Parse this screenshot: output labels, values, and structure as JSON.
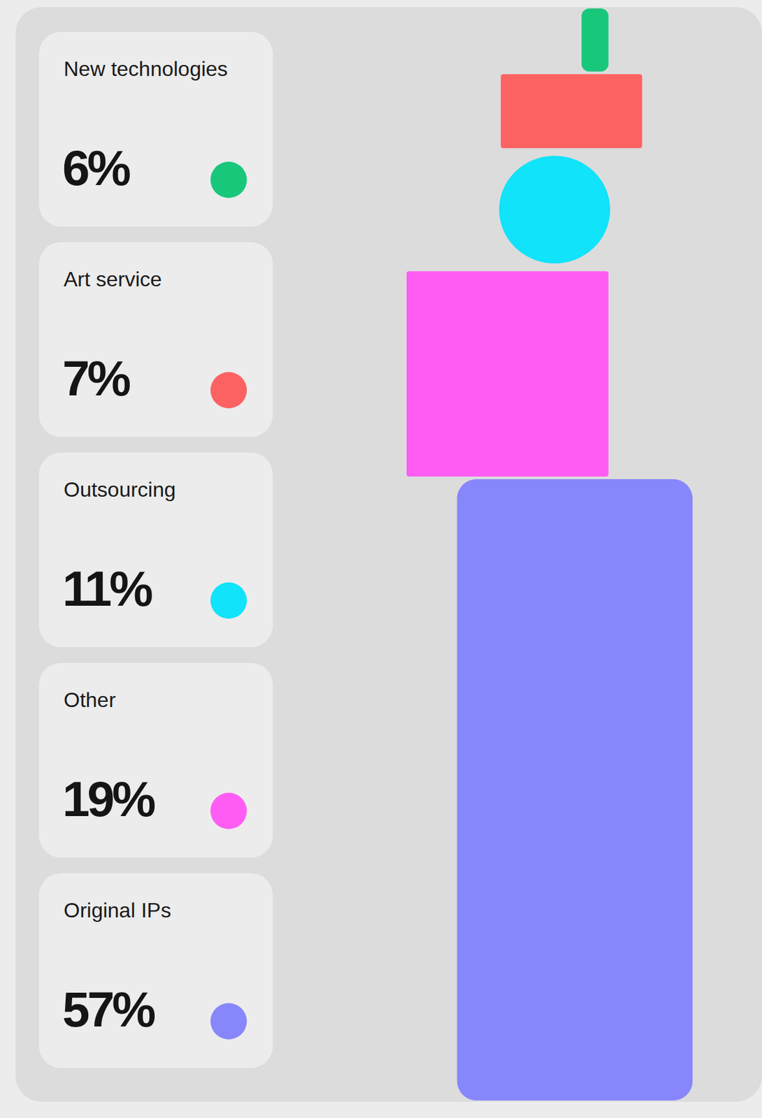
{
  "chart_data": {
    "type": "bar",
    "stacked": true,
    "tick_labels": false,
    "legend": "left",
    "categories": [
      null
    ],
    "series": [
      {
        "name": "New technologies",
        "color": "#19c77b",
        "values": [
          6
        ],
        "value_labels": [
          "6%"
        ]
      },
      {
        "name": "Art service",
        "color": "#fd6262",
        "values": [
          7
        ],
        "value_labels": [
          "7%"
        ]
      },
      {
        "name": "Outsourcing",
        "color": "#10e3fa",
        "values": [
          11
        ],
        "value_labels": [
          "11%"
        ]
      },
      {
        "name": "Other",
        "color": "#ff5cf4",
        "values": [
          19
        ],
        "value_labels": [
          "19%"
        ]
      },
      {
        "name": "Original IPs",
        "color": "#8787fb",
        "values": [
          57
        ],
        "value_labels": [
          "57%"
        ]
      }
    ]
  }
}
